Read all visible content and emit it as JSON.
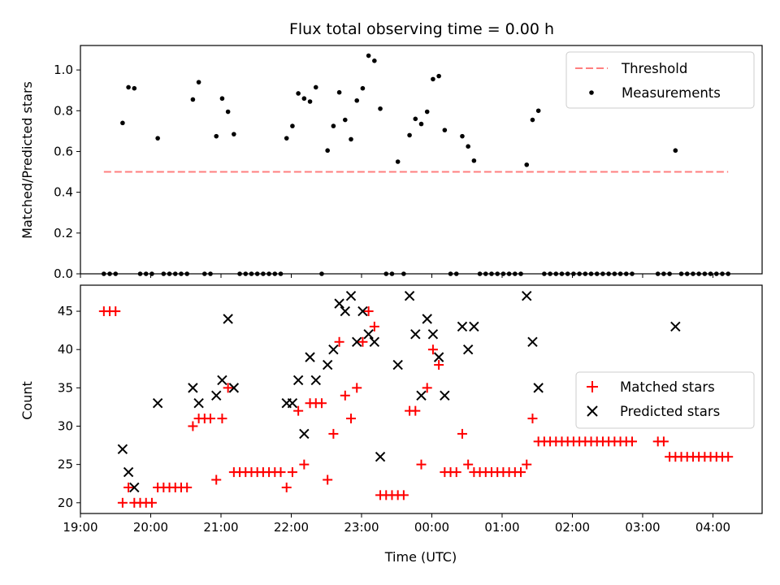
{
  "chart_data": [
    {
      "type": "scatter",
      "title": "Flux total observing time = 0.00 h",
      "xlabel": "",
      "ylabel": "Matched/Predicted stars",
      "ylim": [
        0,
        1.12
      ],
      "yticks": [
        0.0,
        0.2,
        0.4,
        0.6,
        0.8,
        1.0
      ],
      "ytick_labels": [
        "0.0",
        "0.2",
        "0.4",
        "0.6",
        "0.8",
        "1.0"
      ],
      "legend_position": "top-right",
      "threshold": {
        "name": "Threshold",
        "y": 0.5,
        "x_range": [
          "19:20",
          "04:13"
        ],
        "color": "#ff7f7f"
      },
      "series": [
        {
          "name": "Measurements",
          "marker": "dot",
          "color": "#000000",
          "points": [
            [
              "19:20",
              0.0
            ],
            [
              "19:25",
              0.0
            ],
            [
              "19:30",
              0.0
            ],
            [
              "19:36",
              0.74
            ],
            [
              "19:41",
              0.915
            ],
            [
              "19:46",
              0.91
            ],
            [
              "19:51",
              0.0
            ],
            [
              "19:56",
              0.0
            ],
            [
              "20:01",
              0.0
            ],
            [
              "20:06",
              0.665
            ],
            [
              "20:11",
              0.0
            ],
            [
              "20:16",
              0.0
            ],
            [
              "20:21",
              0.0
            ],
            [
              "20:26",
              0.0
            ],
            [
              "20:31",
              0.0
            ],
            [
              "20:36",
              0.855
            ],
            [
              "20:41",
              0.94
            ],
            [
              "20:46",
              0.0
            ],
            [
              "20:51",
              0.0
            ],
            [
              "20:56",
              0.675
            ],
            [
              "21:01",
              0.86
            ],
            [
              "21:06",
              0.795
            ],
            [
              "21:11",
              0.685
            ],
            [
              "21:16",
              0.0
            ],
            [
              "21:21",
              0.0
            ],
            [
              "21:26",
              0.0
            ],
            [
              "21:31",
              0.0
            ],
            [
              "21:36",
              0.0
            ],
            [
              "21:41",
              0.0
            ],
            [
              "21:46",
              0.0
            ],
            [
              "21:51",
              0.0
            ],
            [
              "21:56",
              0.665
            ],
            [
              "22:01",
              0.725
            ],
            [
              "22:06",
              0.885
            ],
            [
              "22:11",
              0.86
            ],
            [
              "22:16",
              0.845
            ],
            [
              "22:21",
              0.915
            ],
            [
              "22:26",
              0.0
            ],
            [
              "22:31",
              0.605
            ],
            [
              "22:36",
              0.725
            ],
            [
              "22:41",
              0.89
            ],
            [
              "22:46",
              0.755
            ],
            [
              "22:51",
              0.66
            ],
            [
              "22:56",
              0.85
            ],
            [
              "23:01",
              0.91
            ],
            [
              "23:06",
              1.07
            ],
            [
              "23:11",
              1.045
            ],
            [
              "23:16",
              0.81
            ],
            [
              "23:21",
              0.0
            ],
            [
              "23:26",
              0.0
            ],
            [
              "23:31",
              0.55
            ],
            [
              "23:36",
              0.0
            ],
            [
              "23:41",
              0.68
            ],
            [
              "23:46",
              0.76
            ],
            [
              "23:51",
              0.735
            ],
            [
              "23:56",
              0.795
            ],
            [
              "00:01",
              0.955
            ],
            [
              "00:06",
              0.97
            ],
            [
              "00:11",
              0.705
            ],
            [
              "00:16",
              0.0
            ],
            [
              "00:21",
              0.0
            ],
            [
              "00:26",
              0.675
            ],
            [
              "00:31",
              0.625
            ],
            [
              "00:36",
              0.555
            ],
            [
              "00:41",
              0.0
            ],
            [
              "00:46",
              0.0
            ],
            [
              "00:51",
              0.0
            ],
            [
              "00:56",
              0.0
            ],
            [
              "01:01",
              0.0
            ],
            [
              "01:06",
              0.0
            ],
            [
              "01:11",
              0.0
            ],
            [
              "01:16",
              0.0
            ],
            [
              "01:21",
              0.535
            ],
            [
              "01:26",
              0.755
            ],
            [
              "01:31",
              0.8
            ],
            [
              "01:36",
              0.0
            ],
            [
              "01:41",
              0.0
            ],
            [
              "01:46",
              0.0
            ],
            [
              "01:51",
              0.0
            ],
            [
              "01:56",
              0.0
            ],
            [
              "02:01",
              0.0
            ],
            [
              "02:06",
              0.0
            ],
            [
              "02:11",
              0.0
            ],
            [
              "02:16",
              0.0
            ],
            [
              "02:21",
              0.0
            ],
            [
              "02:26",
              0.0
            ],
            [
              "02:31",
              0.0
            ],
            [
              "02:36",
              0.0
            ],
            [
              "02:41",
              0.0
            ],
            [
              "02:46",
              0.0
            ],
            [
              "02:51",
              0.0
            ],
            [
              "03:13",
              0.0
            ],
            [
              "03:18",
              0.0
            ],
            [
              "03:23",
              0.0
            ],
            [
              "03:28",
              0.605
            ],
            [
              "03:33",
              0.0
            ],
            [
              "03:38",
              0.0
            ],
            [
              "03:43",
              0.0
            ],
            [
              "03:48",
              0.0
            ],
            [
              "03:53",
              0.0
            ],
            [
              "03:58",
              0.0
            ],
            [
              "04:03",
              0.0
            ],
            [
              "04:08",
              0.0
            ],
            [
              "04:13",
              0.0
            ]
          ]
        }
      ]
    },
    {
      "type": "scatter",
      "title": "",
      "xlabel": "Time (UTC)",
      "ylabel": "Count",
      "ylim": [
        18.6,
        48.4
      ],
      "yticks": [
        20,
        25,
        30,
        35,
        40,
        45
      ],
      "ytick_labels": [
        "20",
        "25",
        "30",
        "35",
        "40",
        "45"
      ],
      "xlim": [
        "19:00",
        "04:42"
      ],
      "xticks": [
        "19:00",
        "20:00",
        "21:00",
        "22:00",
        "23:00",
        "00:00",
        "01:00",
        "02:00",
        "03:00",
        "04:00"
      ],
      "xtick_labels": [
        "19:00",
        "20:00",
        "21:00",
        "22:00",
        "23:00",
        "00:00",
        "01:00",
        "02:00",
        "03:00",
        "04:00"
      ],
      "legend_position": "center-right",
      "series": [
        {
          "name": "Matched stars",
          "marker": "plus",
          "color": "#ff0000",
          "points": [
            [
              "19:20",
              45
            ],
            [
              "19:25",
              45
            ],
            [
              "19:30",
              45
            ],
            [
              "19:36",
              20
            ],
            [
              "19:41",
              22
            ],
            [
              "19:46",
              20
            ],
            [
              "19:51",
              20
            ],
            [
              "19:56",
              20
            ],
            [
              "20:01",
              20
            ],
            [
              "20:06",
              22
            ],
            [
              "20:11",
              22
            ],
            [
              "20:16",
              22
            ],
            [
              "20:21",
              22
            ],
            [
              "20:26",
              22
            ],
            [
              "20:31",
              22
            ],
            [
              "20:36",
              30
            ],
            [
              "20:41",
              31
            ],
            [
              "20:46",
              31
            ],
            [
              "20:51",
              31
            ],
            [
              "20:56",
              23
            ],
            [
              "21:01",
              31
            ],
            [
              "21:06",
              35
            ],
            [
              "21:11",
              24
            ],
            [
              "21:16",
              24
            ],
            [
              "21:21",
              24
            ],
            [
              "21:26",
              24
            ],
            [
              "21:31",
              24
            ],
            [
              "21:36",
              24
            ],
            [
              "21:41",
              24
            ],
            [
              "21:46",
              24
            ],
            [
              "21:51",
              24
            ],
            [
              "21:56",
              22
            ],
            [
              "22:01",
              24
            ],
            [
              "22:06",
              32
            ],
            [
              "22:11",
              25
            ],
            [
              "22:16",
              33
            ],
            [
              "22:21",
              33
            ],
            [
              "22:26",
              33
            ],
            [
              "22:31",
              23
            ],
            [
              "22:36",
              29
            ],
            [
              "22:41",
              41
            ],
            [
              "22:46",
              34
            ],
            [
              "22:51",
              31
            ],
            [
              "22:56",
              35
            ],
            [
              "23:01",
              41
            ],
            [
              "23:06",
              45
            ],
            [
              "23:11",
              43
            ],
            [
              "23:16",
              21
            ],
            [
              "23:21",
              21
            ],
            [
              "23:26",
              21
            ],
            [
              "23:31",
              21
            ],
            [
              "23:36",
              21
            ],
            [
              "23:41",
              32
            ],
            [
              "23:46",
              32
            ],
            [
              "23:51",
              25
            ],
            [
              "23:56",
              35
            ],
            [
              "00:01",
              40
            ],
            [
              "00:06",
              38
            ],
            [
              "00:11",
              24
            ],
            [
              "00:16",
              24
            ],
            [
              "00:21",
              24
            ],
            [
              "00:26",
              29
            ],
            [
              "00:31",
              25
            ],
            [
              "00:36",
              24
            ],
            [
              "00:41",
              24
            ],
            [
              "00:46",
              24
            ],
            [
              "00:51",
              24
            ],
            [
              "00:56",
              24
            ],
            [
              "01:01",
              24
            ],
            [
              "01:06",
              24
            ],
            [
              "01:11",
              24
            ],
            [
              "01:16",
              24
            ],
            [
              "01:21",
              25
            ],
            [
              "01:26",
              31
            ],
            [
              "01:31",
              28
            ],
            [
              "01:36",
              28
            ],
            [
              "01:41",
              28
            ],
            [
              "01:46",
              28
            ],
            [
              "01:51",
              28
            ],
            [
              "01:56",
              28
            ],
            [
              "02:01",
              28
            ],
            [
              "02:06",
              28
            ],
            [
              "02:11",
              28
            ],
            [
              "02:16",
              28
            ],
            [
              "02:21",
              28
            ],
            [
              "02:26",
              28
            ],
            [
              "02:31",
              28
            ],
            [
              "02:36",
              28
            ],
            [
              "02:41",
              28
            ],
            [
              "02:46",
              28
            ],
            [
              "02:51",
              28
            ],
            [
              "03:13",
              28
            ],
            [
              "03:18",
              28
            ],
            [
              "03:23",
              26
            ],
            [
              "03:28",
              26
            ],
            [
              "03:33",
              26
            ],
            [
              "03:38",
              26
            ],
            [
              "03:43",
              26
            ],
            [
              "03:48",
              26
            ],
            [
              "03:53",
              26
            ],
            [
              "03:58",
              26
            ],
            [
              "04:03",
              26
            ],
            [
              "04:08",
              26
            ],
            [
              "04:13",
              26
            ]
          ]
        },
        {
          "name": "Predicted stars",
          "marker": "x",
          "color": "#000000",
          "points": [
            [
              "19:36",
              27
            ],
            [
              "19:41",
              24
            ],
            [
              "19:46",
              22
            ],
            [
              "20:06",
              33
            ],
            [
              "20:36",
              35
            ],
            [
              "20:41",
              33
            ],
            [
              "20:56",
              34
            ],
            [
              "21:01",
              36
            ],
            [
              "21:06",
              44
            ],
            [
              "21:11",
              35
            ],
            [
              "21:56",
              33
            ],
            [
              "22:01",
              33
            ],
            [
              "22:06",
              36
            ],
            [
              "22:11",
              29
            ],
            [
              "22:16",
              39
            ],
            [
              "22:21",
              36
            ],
            [
              "22:31",
              38
            ],
            [
              "22:36",
              40
            ],
            [
              "22:41",
              46
            ],
            [
              "22:46",
              45
            ],
            [
              "22:51",
              47
            ],
            [
              "22:56",
              41
            ],
            [
              "23:01",
              45
            ],
            [
              "23:06",
              42
            ],
            [
              "23:11",
              41
            ],
            [
              "23:16",
              26
            ],
            [
              "23:31",
              38
            ],
            [
              "23:41",
              47
            ],
            [
              "23:46",
              42
            ],
            [
              "23:51",
              34
            ],
            [
              "23:56",
              44
            ],
            [
              "00:01",
              42
            ],
            [
              "00:06",
              39
            ],
            [
              "00:11",
              34
            ],
            [
              "00:26",
              43
            ],
            [
              "00:31",
              40
            ],
            [
              "00:36",
              43
            ],
            [
              "01:21",
              47
            ],
            [
              "01:26",
              41
            ],
            [
              "01:31",
              35
            ],
            [
              "03:28",
              43
            ]
          ]
        }
      ]
    }
  ]
}
